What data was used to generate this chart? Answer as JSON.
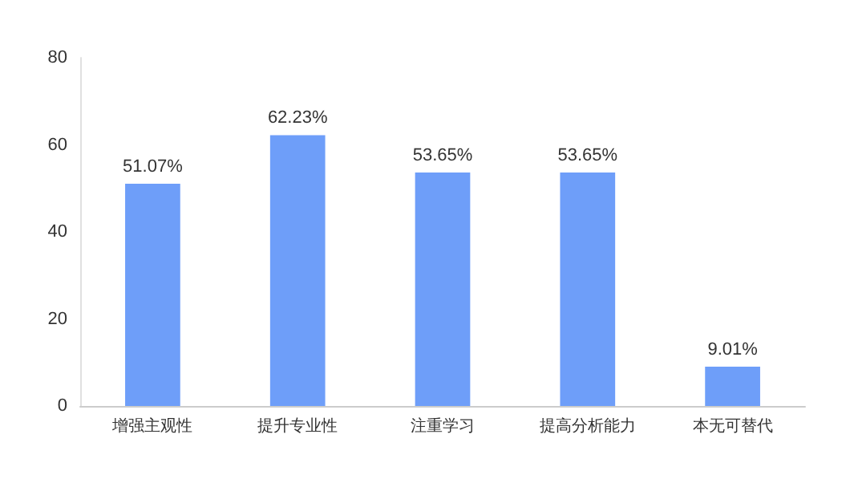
{
  "chart_data": {
    "type": "bar",
    "categories": [
      "增强主观性",
      "提升专业性",
      "注重学习",
      "提高分析能力",
      "本无可替代"
    ],
    "values": [
      51.07,
      62.23,
      53.65,
      53.65,
      9.01
    ],
    "value_labels": [
      "51.07%",
      "62.23%",
      "53.65%",
      "53.65%",
      "9.01%"
    ],
    "color": "#6e9ef9",
    "ylim": [
      0,
      80
    ],
    "yticks": [
      0,
      20,
      40,
      60,
      80
    ],
    "grid": false
  }
}
